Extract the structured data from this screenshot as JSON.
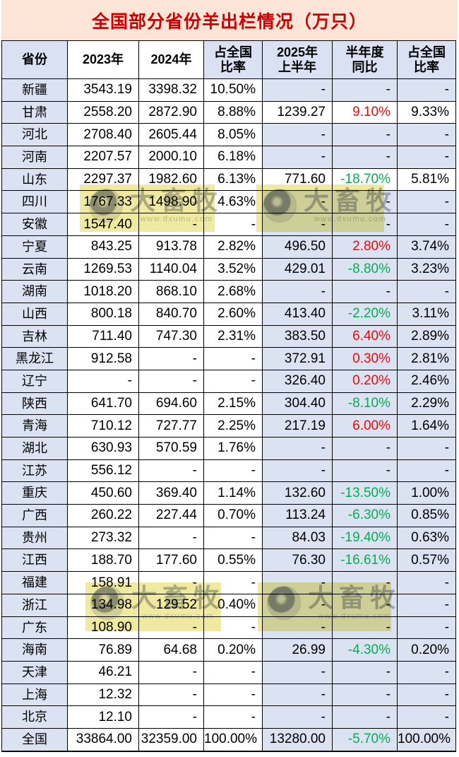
{
  "title": "全国部分省份羊出栏情况（万只）",
  "unit_note": "万只",
  "watermark": {
    "brand": "大畜牧",
    "url": "www.dxumu.com"
  },
  "colors": {
    "title_bg": "#fce4d6",
    "title_text": "#cc0000",
    "header_blue": "#d9e1f2",
    "cell_blue": "#dbe2f1",
    "cell_white": "#ffffff",
    "text": "#000000",
    "up_red": "#ff0000",
    "down_green": "#00b050",
    "border": "#000000",
    "highlight_yellow": "#f0e9a0",
    "watermark_grey": "#b4b9c6",
    "watermark_url_grey": "#c6cad5"
  },
  "chart_data": {
    "type": "table",
    "title": "全国部分省份羊出栏情况（万只）",
    "columns": [
      "省份",
      "2023年",
      "2024年",
      "占全国\n比率",
      "2025年\n上半年",
      "半年度\n同比",
      "占全国\n比率"
    ],
    "rows": [
      [
        "新疆",
        "3543.19",
        "3398.32",
        "10.50%",
        "-",
        "-",
        "-"
      ],
      [
        "甘肃",
        "2558.20",
        "2872.90",
        "8.88%",
        "1239.27",
        "9.10%",
        "9.33%"
      ],
      [
        "河北",
        "2708.40",
        "2605.44",
        "8.05%",
        "-",
        "-",
        "-"
      ],
      [
        "河南",
        "2207.57",
        "2000.10",
        "6.18%",
        "-",
        "-",
        "-"
      ],
      [
        "山东",
        "2297.37",
        "1982.60",
        "6.13%",
        "771.60",
        "-18.70%",
        "5.81%"
      ],
      [
        "四川",
        "1767.33",
        "1498.90",
        "4.63%",
        "-",
        "-",
        "-"
      ],
      [
        "安徽",
        "1547.40",
        "-",
        "-",
        "-",
        "-",
        "-"
      ],
      [
        "宁夏",
        "843.25",
        "913.78",
        "2.82%",
        "496.50",
        "2.80%",
        "3.74%"
      ],
      [
        "云南",
        "1269.53",
        "1140.04",
        "3.52%",
        "429.01",
        "-8.80%",
        "3.23%"
      ],
      [
        "湖南",
        "1018.20",
        "868.10",
        "2.68%",
        "-",
        "-",
        "-"
      ],
      [
        "山西",
        "800.18",
        "840.70",
        "2.60%",
        "413.40",
        "-2.20%",
        "3.11%"
      ],
      [
        "吉林",
        "711.40",
        "747.30",
        "2.31%",
        "383.50",
        "6.40%",
        "2.89%"
      ],
      [
        "黑龙江",
        "912.58",
        "-",
        "-",
        "372.91",
        "0.30%",
        "2.81%"
      ],
      [
        "辽宁",
        "-",
        "-",
        "-",
        "326.40",
        "0.20%",
        "2.46%"
      ],
      [
        "陕西",
        "641.70",
        "694.60",
        "2.15%",
        "304.40",
        "-8.10%",
        "2.29%"
      ],
      [
        "青海",
        "710.12",
        "727.77",
        "2.25%",
        "217.19",
        "6.00%",
        "1.64%"
      ],
      [
        "湖北",
        "630.93",
        "570.59",
        "1.76%",
        "-",
        "-",
        "-"
      ],
      [
        "江苏",
        "556.12",
        "-",
        "-",
        "-",
        "-",
        "-"
      ],
      [
        "重庆",
        "450.60",
        "369.40",
        "1.14%",
        "132.60",
        "-13.50%",
        "1.00%"
      ],
      [
        "广西",
        "260.22",
        "227.44",
        "0.70%",
        "113.24",
        "-6.30%",
        "0.85%"
      ],
      [
        "贵州",
        "273.32",
        "-",
        "-",
        "84.03",
        "-19.40%",
        "0.63%"
      ],
      [
        "江西",
        "188.70",
        "177.60",
        "0.55%",
        "76.30",
        "-16.61%",
        "0.57%"
      ],
      [
        "福建",
        "158.91",
        "-",
        "-",
        "-",
        "-",
        "-"
      ],
      [
        "浙江",
        "134.98",
        "129.52",
        "0.40%",
        "-",
        "-",
        "-"
      ],
      [
        "广东",
        "108.90",
        "-",
        "-",
        "-",
        "-",
        "-"
      ],
      [
        "海南",
        "76.89",
        "64.68",
        "0.20%",
        "26.99",
        "-4.30%",
        "0.20%"
      ],
      [
        "天津",
        "46.21",
        "-",
        "-",
        "-",
        "-",
        "-"
      ],
      [
        "上海",
        "12.32",
        "-",
        "-",
        "-",
        "-",
        "-"
      ],
      [
        "北京",
        "12.10",
        "-",
        "-",
        "-",
        "-",
        "-"
      ],
      [
        "全国",
        "33864.00",
        "32359.00",
        "100.00%",
        "13280.00",
        "-5.70%",
        "100.00%"
      ]
    ],
    "yoy_trend": [
      "",
      "up",
      "",
      "",
      "down",
      "",
      "",
      "up",
      "down",
      "",
      "down",
      "up",
      "up",
      "up",
      "down",
      "up",
      "",
      "",
      "down",
      "down",
      "down",
      "down",
      "",
      "",
      "",
      "down",
      "",
      "",
      "",
      "down"
    ],
    "white_h1_rows": [
      1,
      4
    ],
    "white_header_cols": [
      1,
      2
    ]
  }
}
